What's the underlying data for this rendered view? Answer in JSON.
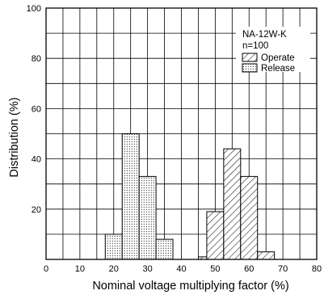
{
  "chart_data": {
    "type": "bar",
    "xlabel": "Nominal voltage multiplying factor (%)",
    "ylabel": "Distribution (%)",
    "xlim": [
      0,
      80
    ],
    "ylim": [
      0,
      100
    ],
    "x_ticks": [
      "0",
      "10",
      "20",
      "30",
      "40",
      "50",
      "60",
      "70",
      "80"
    ],
    "y_ticks": [
      "20",
      "40",
      "60",
      "80",
      "100"
    ],
    "grid": true,
    "bin_width": 5,
    "legend_position": "top-right",
    "annotations": [
      "NA-12W-K",
      "n=100"
    ],
    "series": [
      {
        "name": "Operate",
        "pattern": "hatched",
        "bins": [
          {
            "start": 45,
            "end": 47.5,
            "value": 1
          },
          {
            "start": 47.5,
            "end": 52.5,
            "value": 19
          },
          {
            "start": 52.5,
            "end": 57.5,
            "value": 44
          },
          {
            "start": 57.5,
            "end": 62.5,
            "value": 33
          },
          {
            "start": 62.5,
            "end": 67.5,
            "value": 3
          }
        ]
      },
      {
        "name": "Release",
        "pattern": "dotted",
        "bins": [
          {
            "start": 17.5,
            "end": 22.5,
            "value": 10
          },
          {
            "start": 22.5,
            "end": 27.5,
            "value": 50
          },
          {
            "start": 27.5,
            "end": 32.5,
            "value": 33
          },
          {
            "start": 32.5,
            "end": 37.5,
            "value": 8
          }
        ]
      }
    ]
  }
}
